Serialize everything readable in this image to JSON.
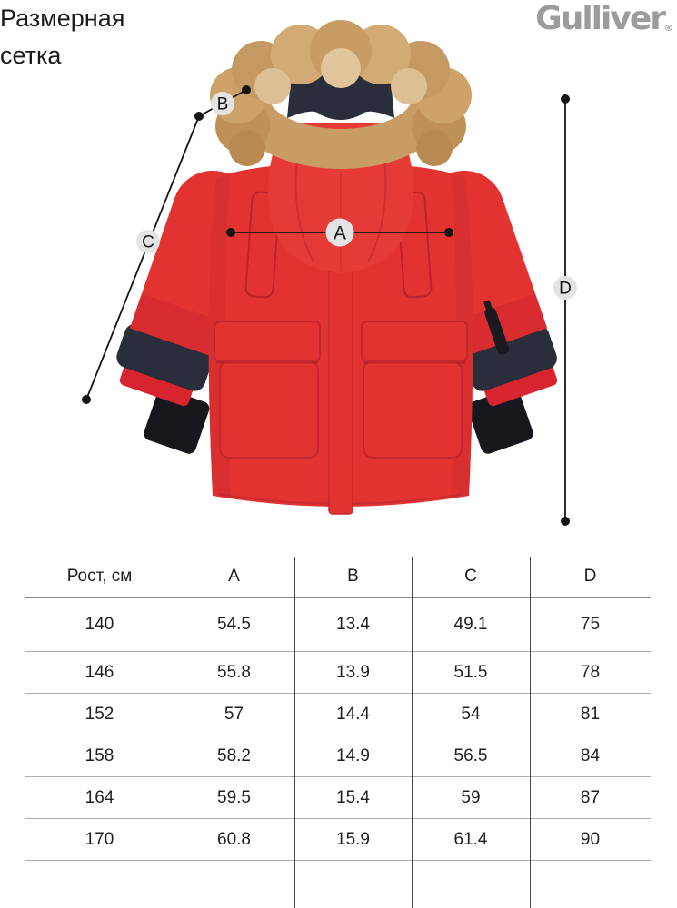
{
  "page": {
    "title_lines": [
      "Размерная",
      "сетка"
    ]
  },
  "brand": {
    "name": "Gulliver",
    "registered_mark": "®",
    "color": "#9c9c9c"
  },
  "diagram": {
    "description": "Red kids parka with fur hood, annotated with measurement lines",
    "labels": {
      "a": "A",
      "b": "B",
      "c": "C",
      "d": "D"
    },
    "colors": {
      "jacket_red": "#e23330",
      "jacket_red_dark": "#c22830",
      "hood_red": "#e63a36",
      "fur_tan": "#c89c65",
      "fur_light": "#d2ab74",
      "fur_dark": "#bf9158",
      "navy": "#2a2e3b",
      "rib_black": "#17181d",
      "annotation_line": "#141414",
      "label_circle_fill": "#e3e3e3"
    }
  },
  "size_table": {
    "header": [
      "Рост, см",
      "A",
      "B",
      "C",
      "D"
    ],
    "rows": [
      [
        "140",
        "54.5",
        "13.4",
        "49.1",
        "75"
      ],
      [
        "146",
        "55.8",
        "13.9",
        "51.5",
        "78"
      ],
      [
        "152",
        "57",
        "14.4",
        "54",
        "81"
      ],
      [
        "158",
        "58.2",
        "14.9",
        "56.5",
        "84"
      ],
      [
        "164",
        "59.5",
        "15.4",
        "59",
        "87"
      ],
      [
        "170",
        "60.8",
        "15.9",
        "61.4",
        "90"
      ]
    ]
  },
  "chart_data": {
    "type": "table",
    "title": "Размерная сетка",
    "columns": [
      "Рост, см",
      "A",
      "B",
      "C",
      "D"
    ],
    "rows": [
      [
        140,
        54.5,
        13.4,
        49.1,
        75
      ],
      [
        146,
        55.8,
        13.9,
        51.5,
        78
      ],
      [
        152,
        57,
        14.4,
        54,
        81
      ],
      [
        158,
        58.2,
        14.9,
        56.5,
        84
      ],
      [
        164,
        59.5,
        15.4,
        59,
        87
      ],
      [
        170,
        60.8,
        15.9,
        61.4,
        90
      ]
    ],
    "notes": "Measurements in cm; A=chest width, B=hood fur depth, C=sleeve length, D=garment length as annotated on the jacket photo"
  }
}
